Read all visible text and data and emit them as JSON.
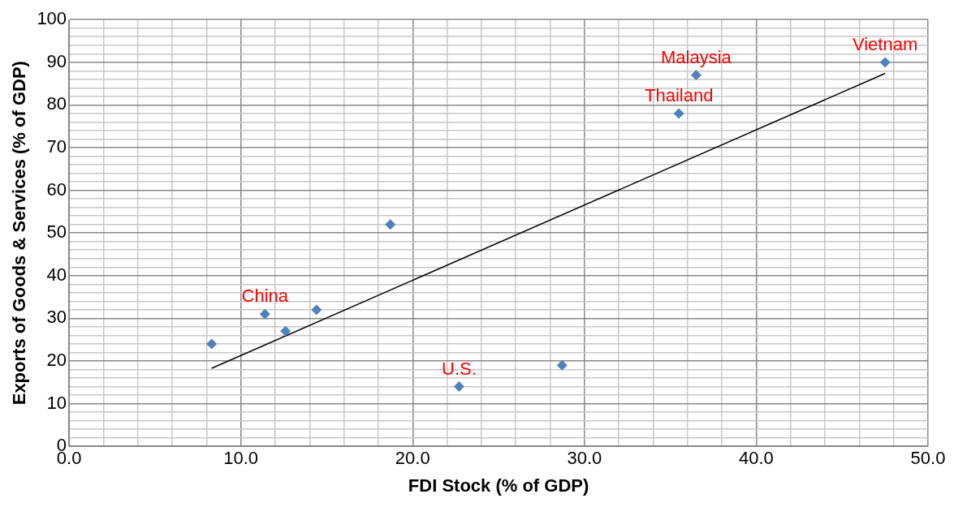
{
  "chart_data": {
    "type": "scatter",
    "xlabel": "FDI Stock (% of GDP)",
    "ylabel": "Exports of Goods & Services (% of GDP)",
    "x": [
      8.3,
      11.4,
      12.6,
      14.4,
      18.7,
      22.7,
      28.7,
      35.5,
      36.5,
      47.5
    ],
    "series": [
      {
        "color": "#4f81bd",
        "marker": "diamond",
        "values": [
          24,
          31,
          27,
          32,
          52,
          14,
          19,
          78,
          87,
          90
        ]
      },
      {
        "type": "line",
        "color": "#000000",
        "x": [
          8.3,
          47.5
        ],
        "values": [
          18.3,
          87.4
        ],
        "marker": "none"
      }
    ],
    "xlim": [
      0,
      50
    ],
    "ylim": [
      0,
      100
    ],
    "xticks": [
      {
        "value": 0,
        "label": "0.0"
      },
      {
        "value": 2,
        "label": null
      },
      {
        "value": 4,
        "label": null
      },
      {
        "value": 6,
        "label": null
      },
      {
        "value": 8,
        "label": null
      },
      {
        "value": 10,
        "label": "10.0"
      },
      {
        "value": 12,
        "label": null
      },
      {
        "value": 14,
        "label": null
      },
      {
        "value": 16,
        "label": null
      },
      {
        "value": 18,
        "label": null
      },
      {
        "value": 20,
        "label": "20.0"
      },
      {
        "value": 22,
        "label": null
      },
      {
        "value": 24,
        "label": null
      },
      {
        "value": 26,
        "label": null
      },
      {
        "value": 28,
        "label": null
      },
      {
        "value": 30,
        "label": "30.0"
      },
      {
        "value": 32,
        "label": null
      },
      {
        "value": 34,
        "label": null
      },
      {
        "value": 36,
        "label": null
      },
      {
        "value": 38,
        "label": null
      },
      {
        "value": 40,
        "label": "40.0"
      },
      {
        "value": 42,
        "label": null
      },
      {
        "value": 44,
        "label": null
      },
      {
        "value": 46,
        "label": null
      },
      {
        "value": 48,
        "label": null
      },
      {
        "value": 50,
        "label": "50.0"
      }
    ],
    "yticks": [
      0,
      {
        "value": 2,
        "label": null
      },
      {
        "value": 4,
        "label": null
      },
      {
        "value": 6,
        "label": null
      },
      {
        "value": 8,
        "label": null
      },
      10,
      {
        "value": 12,
        "label": null
      },
      {
        "value": 14,
        "label": null
      },
      {
        "value": 16,
        "label": null
      },
      {
        "value": 18,
        "label": null
      },
      20,
      {
        "value": 22,
        "label": null
      },
      {
        "value": 24,
        "label": null
      },
      {
        "value": 26,
        "label": null
      },
      {
        "value": 28,
        "label": null
      },
      30,
      {
        "value": 32,
        "label": null
      },
      {
        "value": 34,
        "label": null
      },
      {
        "value": 36,
        "label": null
      },
      {
        "value": 38,
        "label": null
      },
      40,
      {
        "value": 42,
        "label": null
      },
      {
        "value": 44,
        "label": null
      },
      {
        "value": 46,
        "label": null
      },
      {
        "value": 48,
        "label": null
      },
      50,
      {
        "value": 52,
        "label": null
      },
      {
        "value": 54,
        "label": null
      },
      {
        "value": 56,
        "label": null
      },
      {
        "value": 58,
        "label": null
      },
      60,
      {
        "value": 62,
        "label": null
      },
      {
        "value": 64,
        "label": null
      },
      {
        "value": 66,
        "label": null
      },
      {
        "value": 68,
        "label": null
      },
      70,
      {
        "value": 72,
        "label": null
      },
      {
        "value": 74,
        "label": null
      },
      {
        "value": 76,
        "label": null
      },
      {
        "value": 78,
        "label": null
      },
      80,
      {
        "value": 82,
        "label": null
      },
      {
        "value": 84,
        "label": null
      },
      {
        "value": 86,
        "label": null
      },
      {
        "value": 88,
        "label": null
      },
      90,
      {
        "value": 92,
        "label": null
      },
      {
        "value": 94,
        "label": null
      },
      {
        "value": 96,
        "label": null
      },
      {
        "value": 98,
        "label": null
      },
      100
    ],
    "grid": true,
    "legend": false,
    "annotations": [
      {
        "text": "China",
        "x": 11.4,
        "y": 31
      },
      {
        "text": "U.S.",
        "x": 22.7,
        "y": 14
      },
      {
        "text": "Thailand",
        "x": 35.5,
        "y": 78
      },
      {
        "text": "Malaysia",
        "x": 36.5,
        "y": 87
      },
      {
        "text": "Vietnam",
        "x": 47.5,
        "y": 90
      }
    ]
  }
}
